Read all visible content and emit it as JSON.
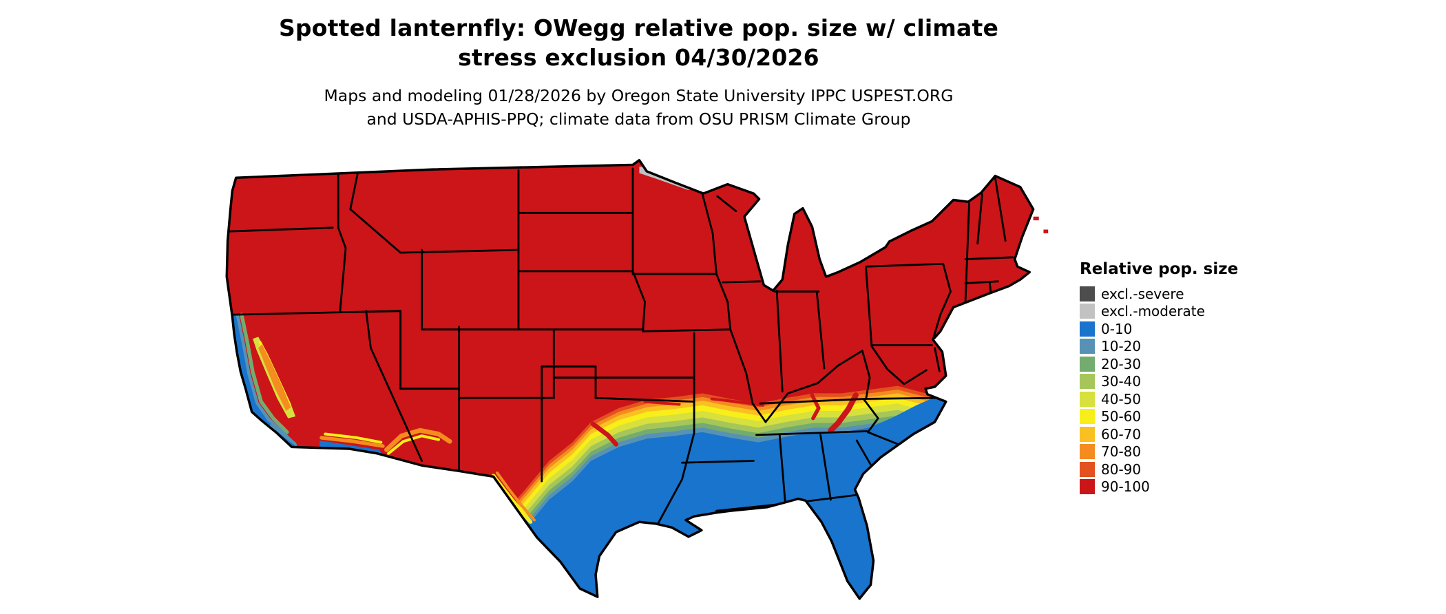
{
  "title": "Spotted lanternfly: OWegg relative pop. size w/ climate stress exclusion 04/30/2026",
  "subtitle": "Maps and modeling 01/28/2026 by Oregon State University IPPC USPEST.ORG and USDA-APHIS-PPQ; climate data from OSU PRISM Climate Group",
  "legend": {
    "title": "Relative pop. size",
    "items": [
      {
        "label": "excl.-severe",
        "color": "#4d4d4d"
      },
      {
        "label": "excl.-moderate",
        "color": "#c2c2c2"
      },
      {
        "label": "0-10",
        "color": "#1874cd"
      },
      {
        "label": "10-20",
        "color": "#5792b5"
      },
      {
        "label": "20-30",
        "color": "#74ab6f"
      },
      {
        "label": "30-40",
        "color": "#a6c65a"
      },
      {
        "label": "40-50",
        "color": "#d7e03c"
      },
      {
        "label": "50-60",
        "color": "#f8ef1a"
      },
      {
        "label": "60-70",
        "color": "#fac022"
      },
      {
        "label": "70-80",
        "color": "#f48c20"
      },
      {
        "label": "80-90",
        "color": "#e3511e"
      },
      {
        "label": "90-100",
        "color": "#cc1518"
      }
    ]
  },
  "map": {
    "region_label": "Contiguous United States",
    "dominant_north_class": "90-100",
    "dominant_south_class": "0-10",
    "excluded_area_class": "excl.-moderate"
  }
}
